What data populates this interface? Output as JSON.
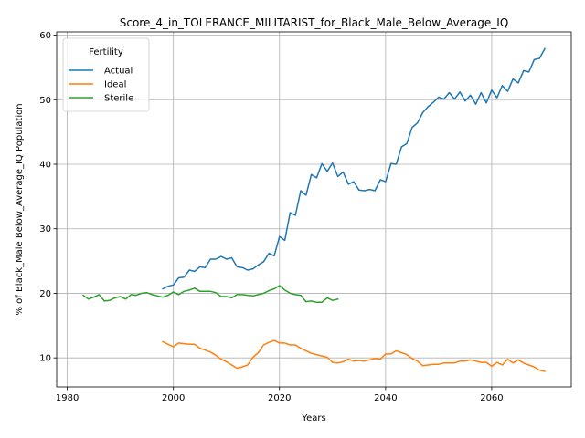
{
  "chart_data": {
    "type": "line",
    "title": "Score_4_in_TOLERANCE_MILITARIST_for_Black_Male_Below_Average_IQ",
    "xlabel": "Years",
    "ylabel": "% of Black_Male Below_Average_IQ Population",
    "xlim": [
      1978,
      2075
    ],
    "ylim": [
      5.5,
      60.5
    ],
    "xticks": [
      1980,
      2000,
      2020,
      2040,
      2060
    ],
    "yticks": [
      10,
      20,
      30,
      40,
      50,
      60
    ],
    "grid": true,
    "legend": {
      "title": "Fertility",
      "placement": "top-left"
    },
    "series": [
      {
        "name": "Actual",
        "color": "#1f77b4",
        "x": [
          1998,
          1999,
          2000,
          2001,
          2002,
          2003,
          2004,
          2005,
          2006,
          2007,
          2008,
          2009,
          2010,
          2011,
          2012,
          2013,
          2014,
          2015,
          2016,
          2017,
          2018,
          2019,
          2020,
          2021,
          2022,
          2023,
          2024,
          2025,
          2026,
          2027,
          2028,
          2029,
          2030,
          2031,
          2032,
          2033,
          2034,
          2035,
          2036,
          2037,
          2038,
          2039,
          2040,
          2041,
          2042,
          2043,
          2044,
          2045,
          2046,
          2047,
          2048,
          2049,
          2050,
          2051,
          2052,
          2053,
          2054,
          2055,
          2056,
          2057,
          2058,
          2059,
          2060,
          2061,
          2062,
          2063,
          2064,
          2065,
          2066,
          2067,
          2068,
          2069,
          2070
        ],
        "y": [
          20.7,
          21.1,
          21.3,
          22.4,
          22.5,
          23.6,
          23.4,
          24.1,
          24.0,
          25.3,
          25.3,
          25.7,
          25.3,
          25.5,
          24.1,
          24.0,
          23.6,
          23.8,
          24.4,
          24.9,
          26.2,
          25.8,
          28.8,
          28.2,
          32.5,
          32.1,
          35.9,
          35.2,
          38.4,
          37.9,
          40.1,
          38.9,
          40.2,
          38.1,
          38.8,
          36.9,
          37.3,
          36.0,
          35.9,
          36.1,
          35.9,
          37.6,
          37.3,
          40.1,
          40.0,
          42.7,
          43.2,
          45.7,
          46.4,
          48.0,
          48.9,
          49.6,
          50.4,
          50.1,
          51.1,
          50.1,
          51.2,
          49.8,
          50.7,
          49.3,
          51.1,
          49.5,
          51.5,
          50.3,
          52.2,
          51.3,
          53.2,
          52.6,
          54.5,
          54.3,
          56.2,
          56.4,
          57.9
        ]
      },
      {
        "name": "Ideal",
        "color": "#ff7f0e",
        "x": [
          1998,
          1999,
          2000,
          2001,
          2002,
          2003,
          2004,
          2005,
          2006,
          2007,
          2008,
          2009,
          2010,
          2011,
          2012,
          2013,
          2014,
          2015,
          2016,
          2017,
          2018,
          2019,
          2020,
          2021,
          2022,
          2023,
          2024,
          2025,
          2026,
          2027,
          2028,
          2029,
          2030,
          2031,
          2032,
          2033,
          2034,
          2035,
          2036,
          2037,
          2038,
          2039,
          2040,
          2041,
          2042,
          2043,
          2044,
          2045,
          2046,
          2047,
          2048,
          2049,
          2050,
          2051,
          2052,
          2053,
          2054,
          2055,
          2056,
          2057,
          2058,
          2059,
          2060,
          2061,
          2062,
          2063,
          2064,
          2065,
          2066,
          2067,
          2068,
          2069,
          2070
        ],
        "y": [
          12.5,
          12.1,
          11.7,
          12.3,
          12.2,
          12.1,
          12.1,
          11.5,
          11.2,
          10.9,
          10.4,
          9.8,
          9.4,
          8.9,
          8.4,
          8.6,
          8.9,
          10.1,
          10.8,
          12.0,
          12.4,
          12.7,
          12.3,
          12.3,
          12.0,
          12.0,
          11.5,
          11.1,
          10.7,
          10.5,
          10.3,
          10.1,
          9.3,
          9.2,
          9.4,
          9.8,
          9.5,
          9.6,
          9.5,
          9.7,
          9.9,
          9.8,
          10.6,
          10.6,
          11.1,
          10.8,
          10.5,
          9.9,
          9.5,
          8.8,
          8.9,
          9.0,
          9.0,
          9.2,
          9.2,
          9.2,
          9.5,
          9.5,
          9.7,
          9.5,
          9.3,
          9.3,
          8.7,
          9.3,
          8.9,
          9.8,
          9.2,
          9.7,
          9.2,
          8.9,
          8.6,
          8.1,
          7.9
        ]
      },
      {
        "name": "Sterile",
        "color": "#2ca02c",
        "x": [
          1983,
          1984,
          1985,
          1986,
          1987,
          1988,
          1989,
          1990,
          1991,
          1992,
          1993,
          1994,
          1995,
          1996,
          1997,
          1998,
          1999,
          2000,
          2001,
          2002,
          2003,
          2004,
          2005,
          2006,
          2007,
          2008,
          2009,
          2010,
          2011,
          2012,
          2013,
          2014,
          2015,
          2016,
          2017,
          2018,
          2019,
          2020,
          2021,
          2022,
          2023,
          2024,
          2025,
          2026,
          2027,
          2028,
          2029,
          2030,
          2031
        ],
        "y": [
          19.7,
          19.1,
          19.4,
          19.8,
          18.8,
          18.9,
          19.3,
          19.5,
          19.1,
          19.8,
          19.7,
          20.0,
          20.1,
          19.8,
          19.6,
          19.4,
          19.7,
          20.2,
          19.8,
          20.3,
          20.5,
          20.8,
          20.3,
          20.3,
          20.3,
          20.1,
          19.5,
          19.5,
          19.3,
          19.8,
          19.8,
          19.7,
          19.6,
          19.8,
          20.0,
          20.4,
          20.7,
          21.2,
          20.5,
          20.0,
          19.8,
          19.7,
          18.7,
          18.8,
          18.6,
          18.6,
          19.3,
          18.9,
          19.1
        ]
      }
    ]
  }
}
